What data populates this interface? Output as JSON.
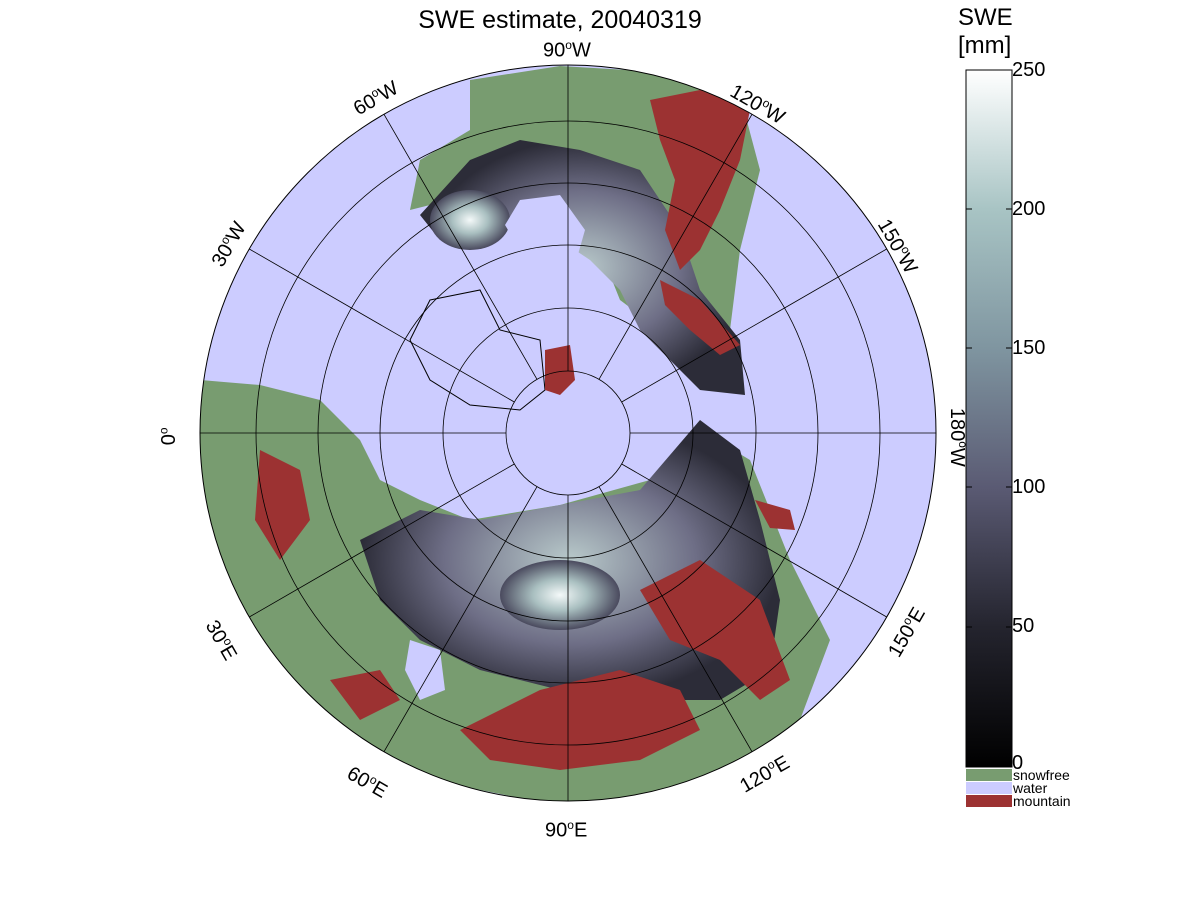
{
  "figure": {
    "title": "SWE estimate, 20040319"
  },
  "map": {
    "projection": "north polar stereographic",
    "colors": {
      "water": "#ccccff",
      "snowfree": "#789c70",
      "mountain": "#9c3232",
      "graticule": "#000000"
    },
    "labels": {
      "lon_90w": "90",
      "lon_60w": "60",
      "lon_30w": "30",
      "lon_0": "0",
      "lon_30e": "30",
      "lon_60e": "60",
      "lon_90e": "90",
      "lon_120e": "120",
      "lon_150e": "150",
      "lon_180w": "180",
      "lon_150w": "150",
      "lon_120w": "120",
      "suffix_w": "W",
      "suffix_e": "E"
    }
  },
  "colorbar": {
    "title_line1": "SWE",
    "title_line2": "[mm]",
    "ticks": [
      "250",
      "200",
      "150",
      "100",
      "50",
      "0"
    ],
    "range": [
      0,
      250
    ],
    "legend": [
      {
        "label": "snowfree",
        "color": "#789c70"
      },
      {
        "label": "water",
        "color": "#ccccff"
      },
      {
        "label": "mountain",
        "color": "#9c3232"
      }
    ]
  }
}
